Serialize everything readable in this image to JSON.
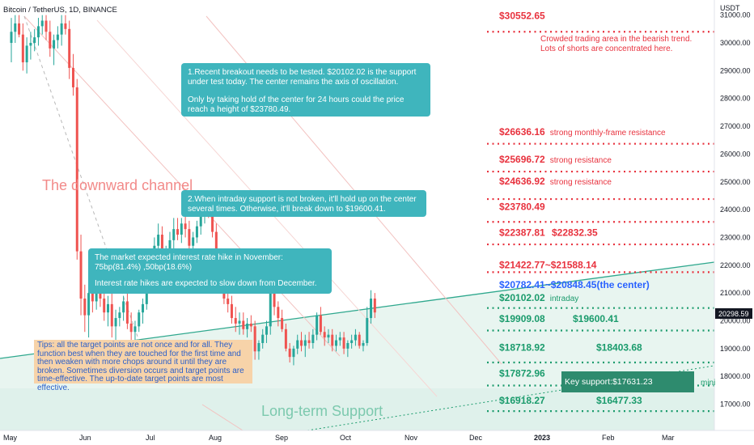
{
  "header": {
    "symbol": "Bitcoin / TetherUS, 1D, BINANCE",
    "currency": "USDT"
  },
  "current_price": "20298.59",
  "chart_data": {
    "type": "candlestick",
    "ylim": [
      16300,
      31000
    ],
    "x_ticks": [
      "May",
      "Jun",
      "Jul",
      "Aug",
      "Sep",
      "Oct",
      "Nov",
      "Dec",
      "2023",
      "Feb",
      "Mar"
    ],
    "y_ticks": [
      "31000.00",
      "30000.00",
      "29000.00",
      "28000.00",
      "27000.00",
      "26000.00",
      "25000.00",
      "24000.00",
      "23000.00",
      "22000.00",
      "21000.00",
      "20000.00",
      "19000.00",
      "18000.00",
      "17000.00"
    ],
    "y_tick_values": [
      31000,
      30000,
      29000,
      28000,
      27000,
      26000,
      25000,
      24000,
      23000,
      22000,
      21000,
      20000,
      19000,
      18000,
      17000
    ],
    "colors": {
      "up": "#26a69a",
      "down": "#ef5350",
      "resistance": "#e8323e",
      "support": "#1a9b6c",
      "center": "#2962ff",
      "price_tag": "#131722"
    },
    "levels": [
      {
        "price": 30400,
        "style": "red"
      },
      {
        "price": 26370,
        "style": "red"
      },
      {
        "price": 25370,
        "style": "red"
      },
      {
        "price": 24380,
        "style": "red"
      },
      {
        "price": 23560,
        "style": "red"
      },
      {
        "price": 22750,
        "style": "red"
      },
      {
        "price": 21750,
        "style": "red"
      },
      {
        "price": 20460,
        "style": "green"
      },
      {
        "price": 19650,
        "style": "green"
      },
      {
        "price": 18500,
        "style": "green"
      },
      {
        "price": 17670,
        "style": "green"
      },
      {
        "price": 16750,
        "style": "green"
      }
    ],
    "level_labels": [
      {
        "text": "$30552.65",
        "price": 30860,
        "color": "red"
      },
      {
        "text": "$26636.16",
        "price": 26680,
        "color": "red",
        "note": "strong monthly-frame resistance"
      },
      {
        "text": "$25696.72",
        "price": 25690,
        "color": "red",
        "note": "strong resistance"
      },
      {
        "text": "$24636.92",
        "price": 24900,
        "color": "red",
        "note": "strong resistance"
      },
      {
        "text": "$23780.49",
        "price": 23990,
        "color": "red"
      },
      {
        "text": "$22387.81",
        "price": 23050,
        "color": "red",
        "extra": "$22832.35"
      },
      {
        "text": "$21422.77~$21588.14",
        "price": 21890,
        "color": "red"
      },
      {
        "text": "$20782.41~$20848.45(the center)",
        "price": 21180,
        "color": "blue"
      },
      {
        "text": "$20102.02",
        "price": 20720,
        "color": "green",
        "note": "intraday"
      },
      {
        "text": "$19909.08",
        "price": 19950,
        "color": "green",
        "extra": "$19600.41"
      },
      {
        "text": "$18718.92",
        "price": 18920,
        "color": "green",
        "extra": "$18403.68"
      },
      {
        "text": "$17872.96",
        "price": 17990,
        "color": "green"
      },
      {
        "text": "$16918.27",
        "price": 17010,
        "color": "green",
        "extra": "$16477.33"
      }
    ],
    "crowded_note": [
      "Crowded trading area in the bearish trend.",
      "Lots of shorts are concentrated here."
    ],
    "channel_label": "The downward channel",
    "support_label": "Long-term Support",
    "key_support": "Key support:$17631.23",
    "cut_text": "mini",
    "candles": [
      [
        30000,
        30900,
        29300,
        30400
      ],
      [
        30400,
        31000,
        30000,
        30700
      ],
      [
        30700,
        31000,
        30200,
        30300
      ],
      [
        30300,
        30700,
        29000,
        29300
      ],
      [
        29300,
        30200,
        28900,
        29900
      ],
      [
        29900,
        30400,
        29400,
        30000
      ],
      [
        30000,
        30500,
        29700,
        30200
      ],
      [
        30200,
        30900,
        29900,
        30600
      ],
      [
        30600,
        31000,
        30300,
        30800
      ],
      [
        30800,
        31000,
        30100,
        30400
      ],
      [
        30400,
        30800,
        29500,
        29800
      ],
      [
        29800,
        30300,
        29200,
        30100
      ],
      [
        30100,
        30600,
        29800,
        30300
      ],
      [
        30300,
        31000,
        29900,
        30700
      ],
      [
        30700,
        31000,
        30300,
        30500
      ],
      [
        30500,
        30800,
        28700,
        29100
      ],
      [
        29100,
        29600,
        28100,
        28400
      ],
      [
        28400,
        28700,
        22200,
        22500
      ],
      [
        22500,
        23100,
        20200,
        20800
      ],
      [
        20800,
        21300,
        19600,
        20200
      ],
      [
        20200,
        21200,
        19400,
        21000
      ],
      [
        21000,
        21500,
        20300,
        20700
      ],
      [
        20700,
        21300,
        20400,
        21100
      ],
      [
        21100,
        21500,
        20500,
        20800
      ],
      [
        20800,
        21100,
        20000,
        20300
      ],
      [
        20300,
        20900,
        19800,
        20600
      ],
      [
        20600,
        21000,
        19400,
        19800
      ],
      [
        19800,
        20400,
        19200,
        20100
      ],
      [
        20100,
        20500,
        19800,
        20300
      ],
      [
        20300,
        20900,
        20000,
        20700
      ],
      [
        20700,
        21100,
        19700,
        19900
      ],
      [
        19900,
        20300,
        19300,
        19600
      ],
      [
        19600,
        20000,
        19200,
        19800
      ],
      [
        19800,
        20400,
        19600,
        20300
      ],
      [
        20300,
        20800,
        19900,
        20600
      ],
      [
        20600,
        21500,
        20400,
        21300
      ],
      [
        21300,
        22300,
        21000,
        22000
      ],
      [
        22000,
        23000,
        21600,
        22700
      ],
      [
        22700,
        23500,
        22300,
        23100
      ],
      [
        23100,
        23400,
        21900,
        22200
      ],
      [
        22200,
        22700,
        21600,
        22400
      ],
      [
        22400,
        23200,
        22100,
        22900
      ],
      [
        22900,
        23700,
        22600,
        23300
      ],
      [
        23300,
        23700,
        22900,
        23100
      ],
      [
        23100,
        23700,
        22800,
        23500
      ],
      [
        23500,
        23900,
        23000,
        23300
      ],
      [
        23300,
        23600,
        22400,
        22700
      ],
      [
        22700,
        23200,
        22300,
        23000
      ],
      [
        23000,
        23600,
        22800,
        23400
      ],
      [
        23400,
        24000,
        23100,
        23800
      ],
      [
        23800,
        24400,
        23500,
        24200
      ],
      [
        24200,
        24500,
        23700,
        23900
      ],
      [
        23900,
        24100,
        23000,
        23200
      ],
      [
        23200,
        23500,
        21200,
        21500
      ],
      [
        21500,
        21800,
        21000,
        21300
      ],
      [
        21300,
        21600,
        20600,
        20800
      ],
      [
        20800,
        21200,
        20300,
        20600
      ],
      [
        20600,
        20900,
        19900,
        20100
      ],
      [
        20100,
        20500,
        19600,
        19900
      ],
      [
        19900,
        20300,
        19500,
        20000
      ],
      [
        20000,
        20300,
        19500,
        19700
      ],
      [
        19700,
        20100,
        19400,
        19900
      ],
      [
        19900,
        20200,
        19600,
        19800
      ],
      [
        19800,
        20000,
        18600,
        18900
      ],
      [
        18900,
        19300,
        18600,
        19200
      ],
      [
        19200,
        19700,
        19000,
        19500
      ],
      [
        19500,
        20000,
        19200,
        19800
      ],
      [
        19800,
        22600,
        19500,
        21900
      ],
      [
        21900,
        22300,
        20200,
        20500
      ],
      [
        20500,
        20700,
        19800,
        20100
      ],
      [
        20100,
        20400,
        19600,
        19700
      ],
      [
        19700,
        19900,
        18900,
        19000
      ],
      [
        19000,
        19200,
        18500,
        18700
      ],
      [
        18700,
        19100,
        18400,
        19000
      ],
      [
        19000,
        19500,
        18800,
        19300
      ],
      [
        19300,
        19600,
        18900,
        19100
      ],
      [
        19100,
        19500,
        18700,
        19300
      ],
      [
        19300,
        19600,
        19000,
        19200
      ],
      [
        19200,
        19700,
        19000,
        19500
      ],
      [
        19500,
        20300,
        19300,
        20200
      ],
      [
        20200,
        20500,
        19500,
        19600
      ],
      [
        19600,
        19800,
        19100,
        19400
      ],
      [
        19400,
        19700,
        19200,
        19500
      ],
      [
        19500,
        19700,
        18900,
        19100
      ],
      [
        19100,
        19500,
        18900,
        19300
      ],
      [
        19300,
        19600,
        19100,
        19400
      ],
      [
        19400,
        19600,
        18800,
        19000
      ],
      [
        19000,
        19300,
        18700,
        19200
      ],
      [
        19200,
        19500,
        19000,
        19300
      ],
      [
        19300,
        19700,
        19100,
        19500
      ],
      [
        19500,
        19600,
        19000,
        19100
      ],
      [
        19100,
        19300,
        18900,
        19200
      ],
      [
        19200,
        20500,
        19100,
        20100
      ],
      [
        20100,
        21100,
        19900,
        20800
      ],
      [
        20800,
        21000,
        20100,
        20300
      ]
    ]
  },
  "annotations": {
    "note1": [
      "1.Recent breakout needs to be tested. $20102.02 is the support under test today. The center remains the axis of oscillation.",
      "Only by taking hold of the center for 24 hours could the price reach a height of $23780.49."
    ],
    "note2": "2.When intraday support is not broken, it'll hold up on the center several times. Otherwise, it'll break down to $19600.41.",
    "note3": [
      "The market expected interest rate hike in November: 75bp(81.4%) ,50bp(18.6%)",
      "Interest rate hikes are expected to slow down from December."
    ],
    "tips": "Tips: all the target points are not once and for all. They function best when they are touched for the first time and then weaken with more chops around it until they are broken. Sometimes diversion occurs and target points are time-effective. The up-to-date target points are most effective."
  }
}
